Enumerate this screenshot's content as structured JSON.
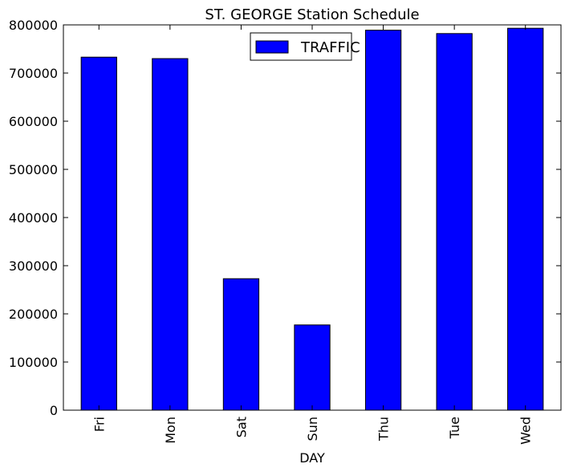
{
  "chart_data": {
    "type": "bar",
    "title": "ST. GEORGE Station Schedule",
    "xlabel": "DAY",
    "ylabel": "",
    "categories": [
      "Fri",
      "Mon",
      "Sat",
      "Sun",
      "Thu",
      "Tue",
      "Wed"
    ],
    "series": [
      {
        "name": "TRAFFIC",
        "values": [
          733000,
          730000,
          273000,
          177000,
          789000,
          782000,
          793000
        ]
      }
    ],
    "ylim": [
      0,
      800000
    ],
    "yticks": [
      0,
      100000,
      200000,
      300000,
      400000,
      500000,
      600000,
      700000,
      800000
    ],
    "ytick_labels": [
      "0",
      "100000",
      "200000",
      "300000",
      "400000",
      "500000",
      "600000",
      "700000",
      "800000"
    ],
    "grid": false,
    "legend_position": "top-center",
    "bar_color": "#0000ff",
    "edge_color": "#000000"
  }
}
